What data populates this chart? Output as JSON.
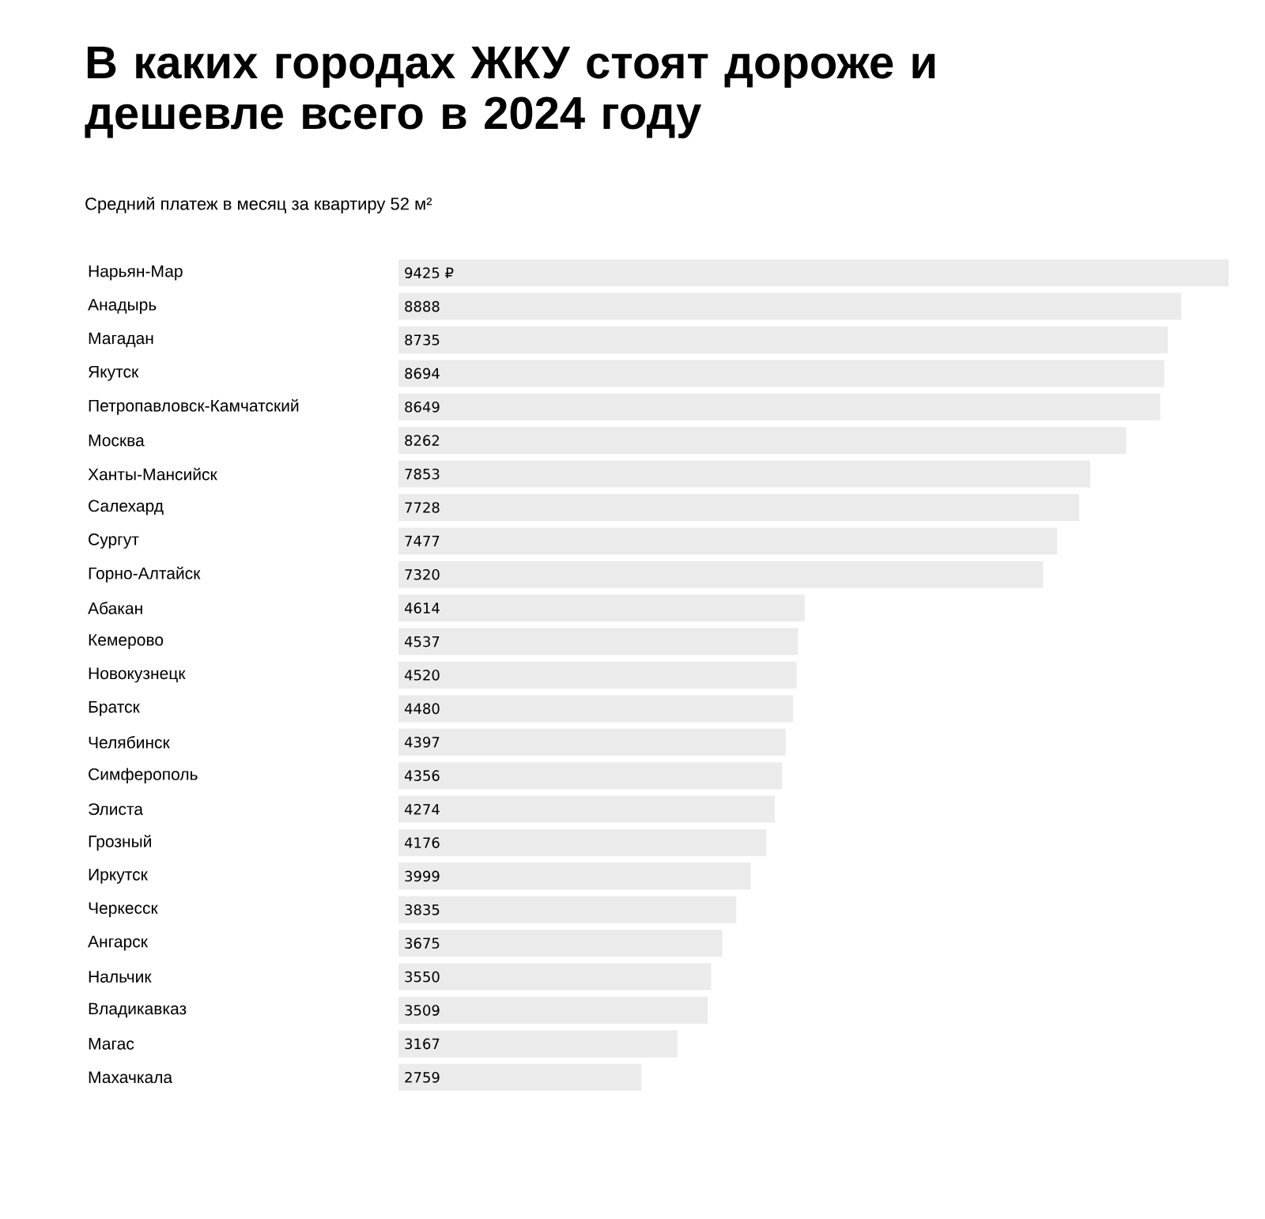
{
  "chart_data": {
    "type": "bar",
    "orientation": "horizontal",
    "title": "В каких городах ЖКУ стоят дороже и дешевле всего в 2024 году",
    "subtitle": "Средний платеж в месяц за квартиру 52 м²",
    "categories": [
      "Нарьян-Мар",
      "Анадырь",
      "Магадан",
      "Якутск",
      "Петропавловск-Камчатский",
      "Москва",
      "Ханты-Мансийск",
      "Салехард",
      "Сургут",
      "Горно-Алтайск",
      "Абакан",
      "Кемерово",
      "Новокузнецк",
      "Братск",
      "Челябинск",
      "Симферополь",
      "Элиста",
      "Грозный",
      "Иркутск",
      "Черкесск",
      "Ангарск",
      "Нальчик",
      "Владикавказ",
      "Магас",
      "Махачкала"
    ],
    "values": [
      9425,
      8888,
      8735,
      8694,
      8649,
      8262,
      7853,
      7728,
      7477,
      7320,
      4614,
      4537,
      4520,
      4480,
      4397,
      4356,
      4274,
      4176,
      3999,
      3835,
      3675,
      3550,
      3509,
      3167,
      2759
    ],
    "value_labels": [
      "9425 ₽",
      "8888",
      "8735",
      "8694",
      "8649",
      "8262",
      "7853",
      "7728",
      "7477",
      "7320",
      "4614",
      "4537",
      "4520",
      "4480",
      "4397",
      "4356",
      "4274",
      "4176",
      "3999",
      "3835",
      "3675",
      "3550",
      "3509",
      "3167",
      "2759"
    ],
    "color": "#ebebeb"
  }
}
